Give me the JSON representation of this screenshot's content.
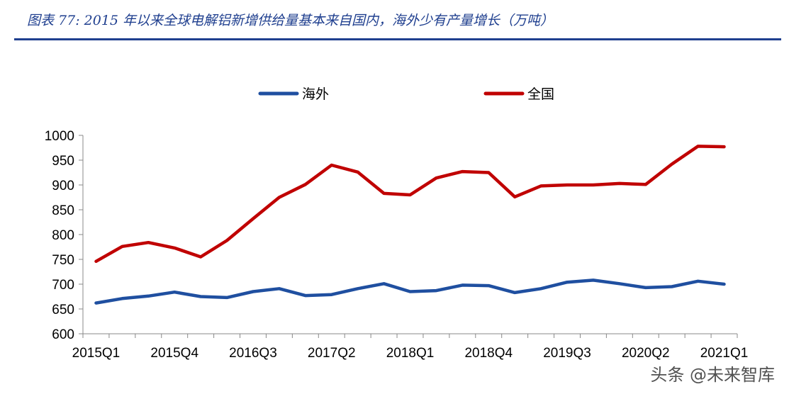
{
  "caption": "图表 77: 2015 年以来全球电解铝新增供给量基本来自国内，海外少有产量增长（万吨）",
  "watermark": "头条 @未来智库",
  "chart_data": {
    "type": "line",
    "title": "",
    "xlabel": "",
    "ylabel": "",
    "ylim": [
      600,
      1000
    ],
    "yticks": [
      600,
      650,
      700,
      750,
      800,
      850,
      900,
      950,
      1000
    ],
    "x": [
      "2015Q1",
      "2015Q2",
      "2015Q3",
      "2015Q4",
      "2016Q1",
      "2016Q2",
      "2016Q3",
      "2016Q4",
      "2017Q1",
      "2017Q2",
      "2017Q3",
      "2017Q4",
      "2018Q1",
      "2018Q2",
      "2018Q3",
      "2018Q4",
      "2019Q1",
      "2019Q2",
      "2019Q3",
      "2019Q4",
      "2020Q1",
      "2020Q2",
      "2020Q3",
      "2020Q4",
      "2021Q1"
    ],
    "x_tick_labels": [
      "2015Q1",
      "2015Q4",
      "2016Q3",
      "2017Q2",
      "2018Q1",
      "2018Q4",
      "2019Q3",
      "2020Q2",
      "2021Q1"
    ],
    "x_tick_indices": [
      0,
      3,
      6,
      9,
      12,
      15,
      18,
      21,
      24
    ],
    "legend_position": "top",
    "grid": false,
    "series": [
      {
        "name": "海外",
        "color": "#1f4fa0",
        "values": [
          662,
          671,
          676,
          684,
          675,
          673,
          685,
          691,
          677,
          679,
          691,
          701,
          685,
          687,
          698,
          697,
          683,
          691,
          704,
          708,
          701,
          693,
          695,
          706,
          700
        ]
      },
      {
        "name": "全国",
        "color": "#c00000",
        "values": [
          746,
          776,
          784,
          773,
          755,
          788,
          832,
          875,
          901,
          940,
          926,
          883,
          880,
          914,
          927,
          925,
          876,
          898,
          900,
          900,
          903,
          901,
          942,
          978,
          977
        ]
      }
    ]
  }
}
